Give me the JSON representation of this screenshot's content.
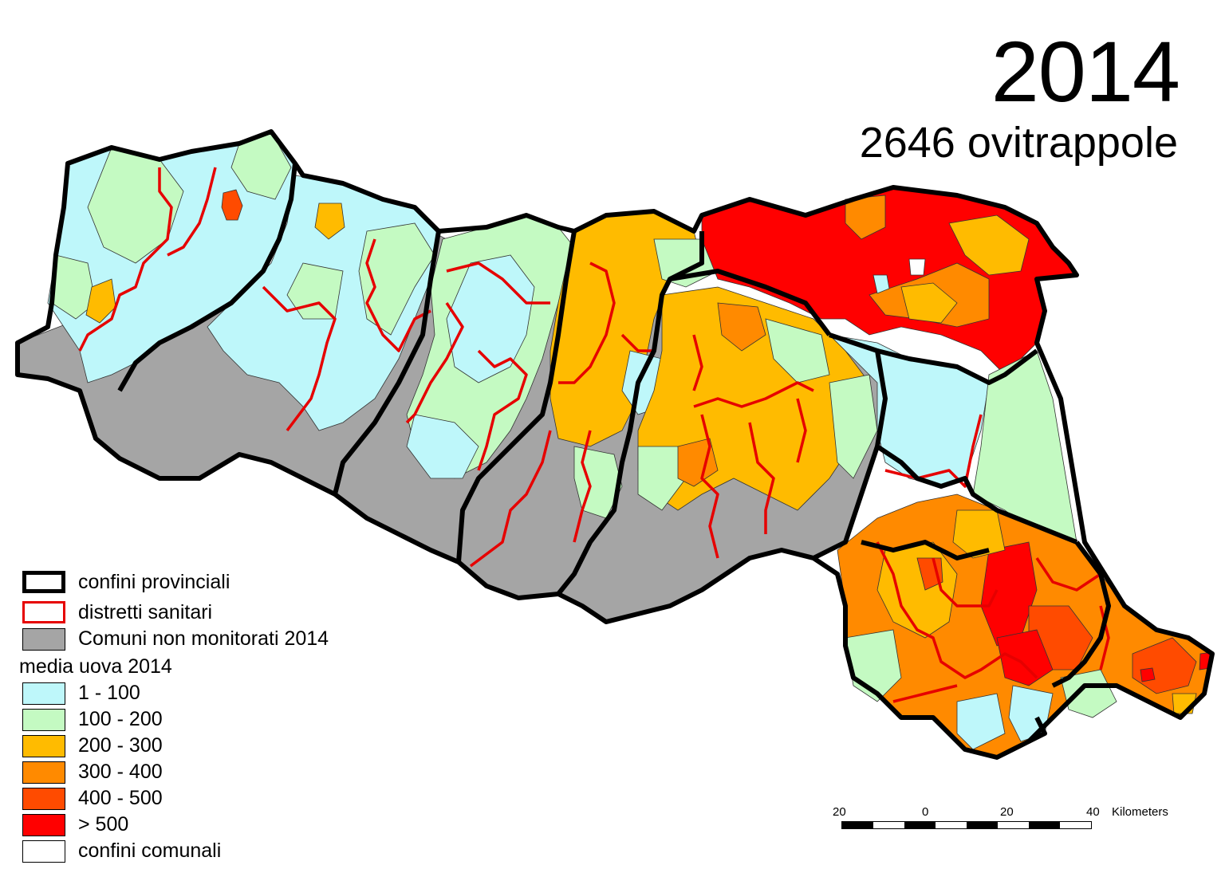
{
  "title": {
    "year": "2014",
    "subtitle": "2646 ovitrappole"
  },
  "legend": {
    "items": [
      {
        "label": "confini provinciali",
        "type": "provincial-border",
        "icon": "thick-black-outline"
      },
      {
        "label": "distretti sanitari",
        "type": "district-border",
        "icon": "red-outline"
      },
      {
        "label": "Comuni non monitorati 2014",
        "type": "fill",
        "color": "#a5a5a5"
      }
    ],
    "class_title": "media uova 2014",
    "classes": [
      {
        "label": "1 - 100",
        "color": "#bef7fa"
      },
      {
        "label": "100 - 200",
        "color": "#c4fac2"
      },
      {
        "label": "200 - 300",
        "color": "#ffbb00"
      },
      {
        "label": "300 - 400",
        "color": "#ff8a00"
      },
      {
        "label": "400 - 500",
        "color": "#ff4b00"
      },
      {
        "label": "> 500",
        "color": "#ff0000"
      },
      {
        "label": "confini comunali",
        "color": "#ffffff"
      }
    ]
  },
  "scale_bar": {
    "ticks": [
      "20",
      "0",
      "20",
      "40"
    ],
    "unit": "Kilometers"
  },
  "colors": {
    "provincial_border": "#000000",
    "district_border": "#e60000",
    "municipal_border": "#333333"
  }
}
